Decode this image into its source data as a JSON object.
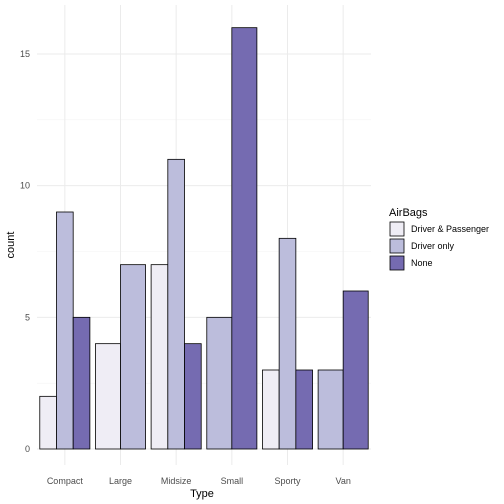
{
  "chart_data": {
    "type": "bar",
    "barmode": "grouped",
    "title": "",
    "xlabel": "Type",
    "ylabel": "count",
    "ylim": [
      0,
      16.8
    ],
    "yticks": [
      0,
      5,
      10,
      15
    ],
    "grid": true,
    "legend_position": "right",
    "legend_title": "AirBags",
    "categories": [
      "Compact",
      "Large",
      "Midsize",
      "Small",
      "Sporty",
      "Van"
    ],
    "series": [
      {
        "name": "Driver & Passenger",
        "color": "#efedf5",
        "values": [
          2,
          4,
          7,
          null,
          3,
          null
        ]
      },
      {
        "name": "Driver only",
        "color": "#bcbddc",
        "values": [
          9,
          7,
          11,
          5,
          8,
          3
        ]
      },
      {
        "name": "None",
        "color": "#756bb1",
        "values": [
          5,
          null,
          4,
          16,
          3,
          6
        ]
      }
    ]
  }
}
